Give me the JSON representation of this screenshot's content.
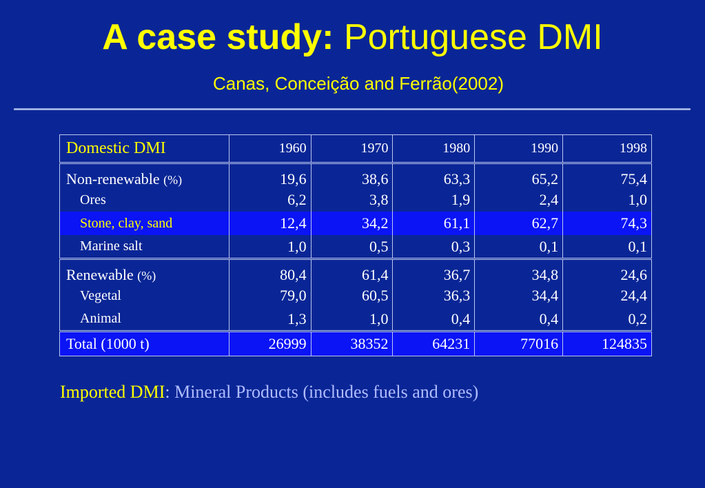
{
  "slide": {
    "title_bold": "A case study:",
    "title_regular": "Portuguese DMI",
    "subtitle": "Canas, Conceição and Ferrão(2002)"
  },
  "table": {
    "header": {
      "label": "Domestic DMI",
      "years": [
        "1960",
        "1970",
        "1980",
        "1990",
        "1998"
      ]
    },
    "rows": [
      {
        "label": "Non-renewable",
        "unit": "(%)",
        "values": [
          "19,6",
          "38,6",
          "63,3",
          "65,2",
          "75,4"
        ]
      },
      {
        "label": "Ores",
        "values": [
          "6,2",
          "3,8",
          "1,9",
          "2,4",
          "1,0"
        ]
      },
      {
        "label": "Stone, clay, sand",
        "values": [
          "12,4",
          "34,2",
          "61,1",
          "62,7",
          "74,3"
        ]
      },
      {
        "label": "Marine salt",
        "values": [
          "1,0",
          "0,5",
          "0,3",
          "0,1",
          "0,1"
        ]
      },
      {
        "label": "Renewable",
        "unit": "(%)",
        "values": [
          "80,4",
          "61,4",
          "36,7",
          "34,8",
          "24,6"
        ]
      },
      {
        "label": "Vegetal",
        "values": [
          "79,0",
          "60,5",
          "36,3",
          "34,4",
          "24,4"
        ]
      },
      {
        "label": "Animal",
        "values": [
          "1,3",
          "1,0",
          "0,4",
          "0,4",
          "0,2"
        ]
      },
      {
        "label": "Total (1000 t)",
        "values": [
          "26999",
          "38352",
          "64231",
          "77016",
          "124835"
        ]
      }
    ]
  },
  "imported": {
    "label": "Imported DMI",
    "separator": ":",
    "text": " Mineral Products (includes fuels and ores)"
  },
  "colors": {
    "background": "#0a2696",
    "highlight": "#0a14f5",
    "title": "#ffff00",
    "secondary_text": "#b0bcff"
  }
}
